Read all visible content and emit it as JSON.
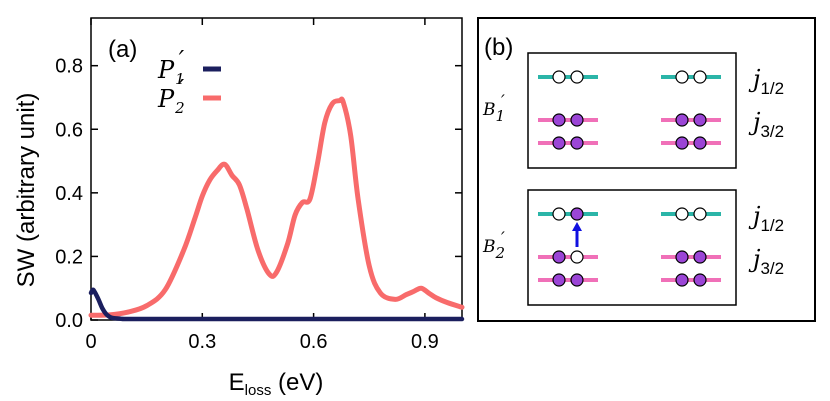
{
  "chart_data": [
    {
      "type": "line",
      "panel_label": "(a)",
      "ylabel": "SW (arbitrary unit)",
      "xlabel_main": "E",
      "xlabel_sub": "loss",
      "xlabel_unit": " (eV)",
      "xlim": [
        0,
        1.0
      ],
      "ylim": [
        0,
        0.95
      ],
      "x_ticks": [
        0,
        0.3,
        0.6,
        0.9
      ],
      "x_tick_labels": [
        "0",
        "0.3",
        "0.6",
        "0.9"
      ],
      "y_ticks": [
        0,
        0.2,
        0.4,
        0.6,
        0.8
      ],
      "y_tick_labels": [
        "0.0",
        "0.2",
        "0.4",
        "0.6",
        "0.8"
      ],
      "legend_position": "top-left",
      "series": [
        {
          "name": "P1′",
          "name_base": "P",
          "name_sub": "1",
          "name_prime": "′",
          "color": "#1b1f5e",
          "x": [
            0,
            0.005,
            0.01,
            0.02,
            0.03,
            0.04,
            0.05,
            0.06,
            0.08,
            0.1,
            0.2,
            0.4,
            0.6,
            0.8,
            1.0
          ],
          "y": [
            0.085,
            0.095,
            0.088,
            0.065,
            0.038,
            0.02,
            0.01,
            0.006,
            0.004,
            0.003,
            0.003,
            0.003,
            0.003,
            0.003,
            0.003
          ]
        },
        {
          "name": "P2′",
          "name_base": "P",
          "name_sub": "2",
          "name_prime": "′",
          "color": "#f86b6b",
          "x": [
            0,
            0.05,
            0.1,
            0.15,
            0.2,
            0.25,
            0.28,
            0.3,
            0.32,
            0.34,
            0.36,
            0.38,
            0.4,
            0.42,
            0.45,
            0.48,
            0.5,
            0.53,
            0.55,
            0.57,
            0.59,
            0.61,
            0.63,
            0.65,
            0.67,
            0.68,
            0.7,
            0.72,
            0.75,
            0.78,
            0.82,
            0.85,
            0.87,
            0.89,
            0.91,
            0.93,
            0.96,
            1.0
          ],
          "y": [
            0.015,
            0.016,
            0.025,
            0.045,
            0.095,
            0.22,
            0.32,
            0.39,
            0.44,
            0.47,
            0.49,
            0.455,
            0.425,
            0.35,
            0.22,
            0.145,
            0.15,
            0.24,
            0.33,
            0.37,
            0.38,
            0.49,
            0.62,
            0.68,
            0.69,
            0.685,
            0.58,
            0.38,
            0.17,
            0.085,
            0.065,
            0.08,
            0.09,
            0.1,
            0.085,
            0.07,
            0.055,
            0.04
          ]
        }
      ]
    },
    {
      "type": "diagram",
      "panel_label": "(b)",
      "rows": [
        {
          "name_base": "B",
          "name_sub": "1",
          "name_prime": "′",
          "levels": [
            {
              "label_base": "j",
              "label_sub": "1/2",
              "color": "#2bb5a8",
              "left": [
                "empty",
                "empty"
              ],
              "right": [
                "empty",
                "empty"
              ]
            },
            {
              "label_base": "j",
              "label_sub": "3/2",
              "color": "#f070b8",
              "left": [
                "filled",
                "filled"
              ],
              "right": [
                "filled",
                "filled"
              ]
            },
            {
              "label_base": "",
              "label_sub": "",
              "color": "#f070b8",
              "left": [
                "filled",
                "filled"
              ],
              "right": [
                "filled",
                "filled"
              ]
            }
          ]
        },
        {
          "name_base": "B",
          "name_sub": "2",
          "name_prime": "′",
          "levels": [
            {
              "label_base": "j",
              "label_sub": "1/2",
              "color": "#2bb5a8",
              "left": [
                "empty",
                "filled"
              ],
              "right": [
                "empty",
                "empty"
              ]
            },
            {
              "label_base": "j",
              "label_sub": "3/2",
              "color": "#f070b8",
              "left": [
                "filled",
                "empty"
              ],
              "right": [
                "filled",
                "filled"
              ]
            },
            {
              "label_base": "",
              "label_sub": "",
              "color": "#f070b8",
              "left": [
                "filled",
                "filled"
              ],
              "right": [
                "filled",
                "filled"
              ]
            }
          ],
          "arrow_color": "#1010e0"
        }
      ],
      "filled_color": "#9b45d6"
    }
  ]
}
